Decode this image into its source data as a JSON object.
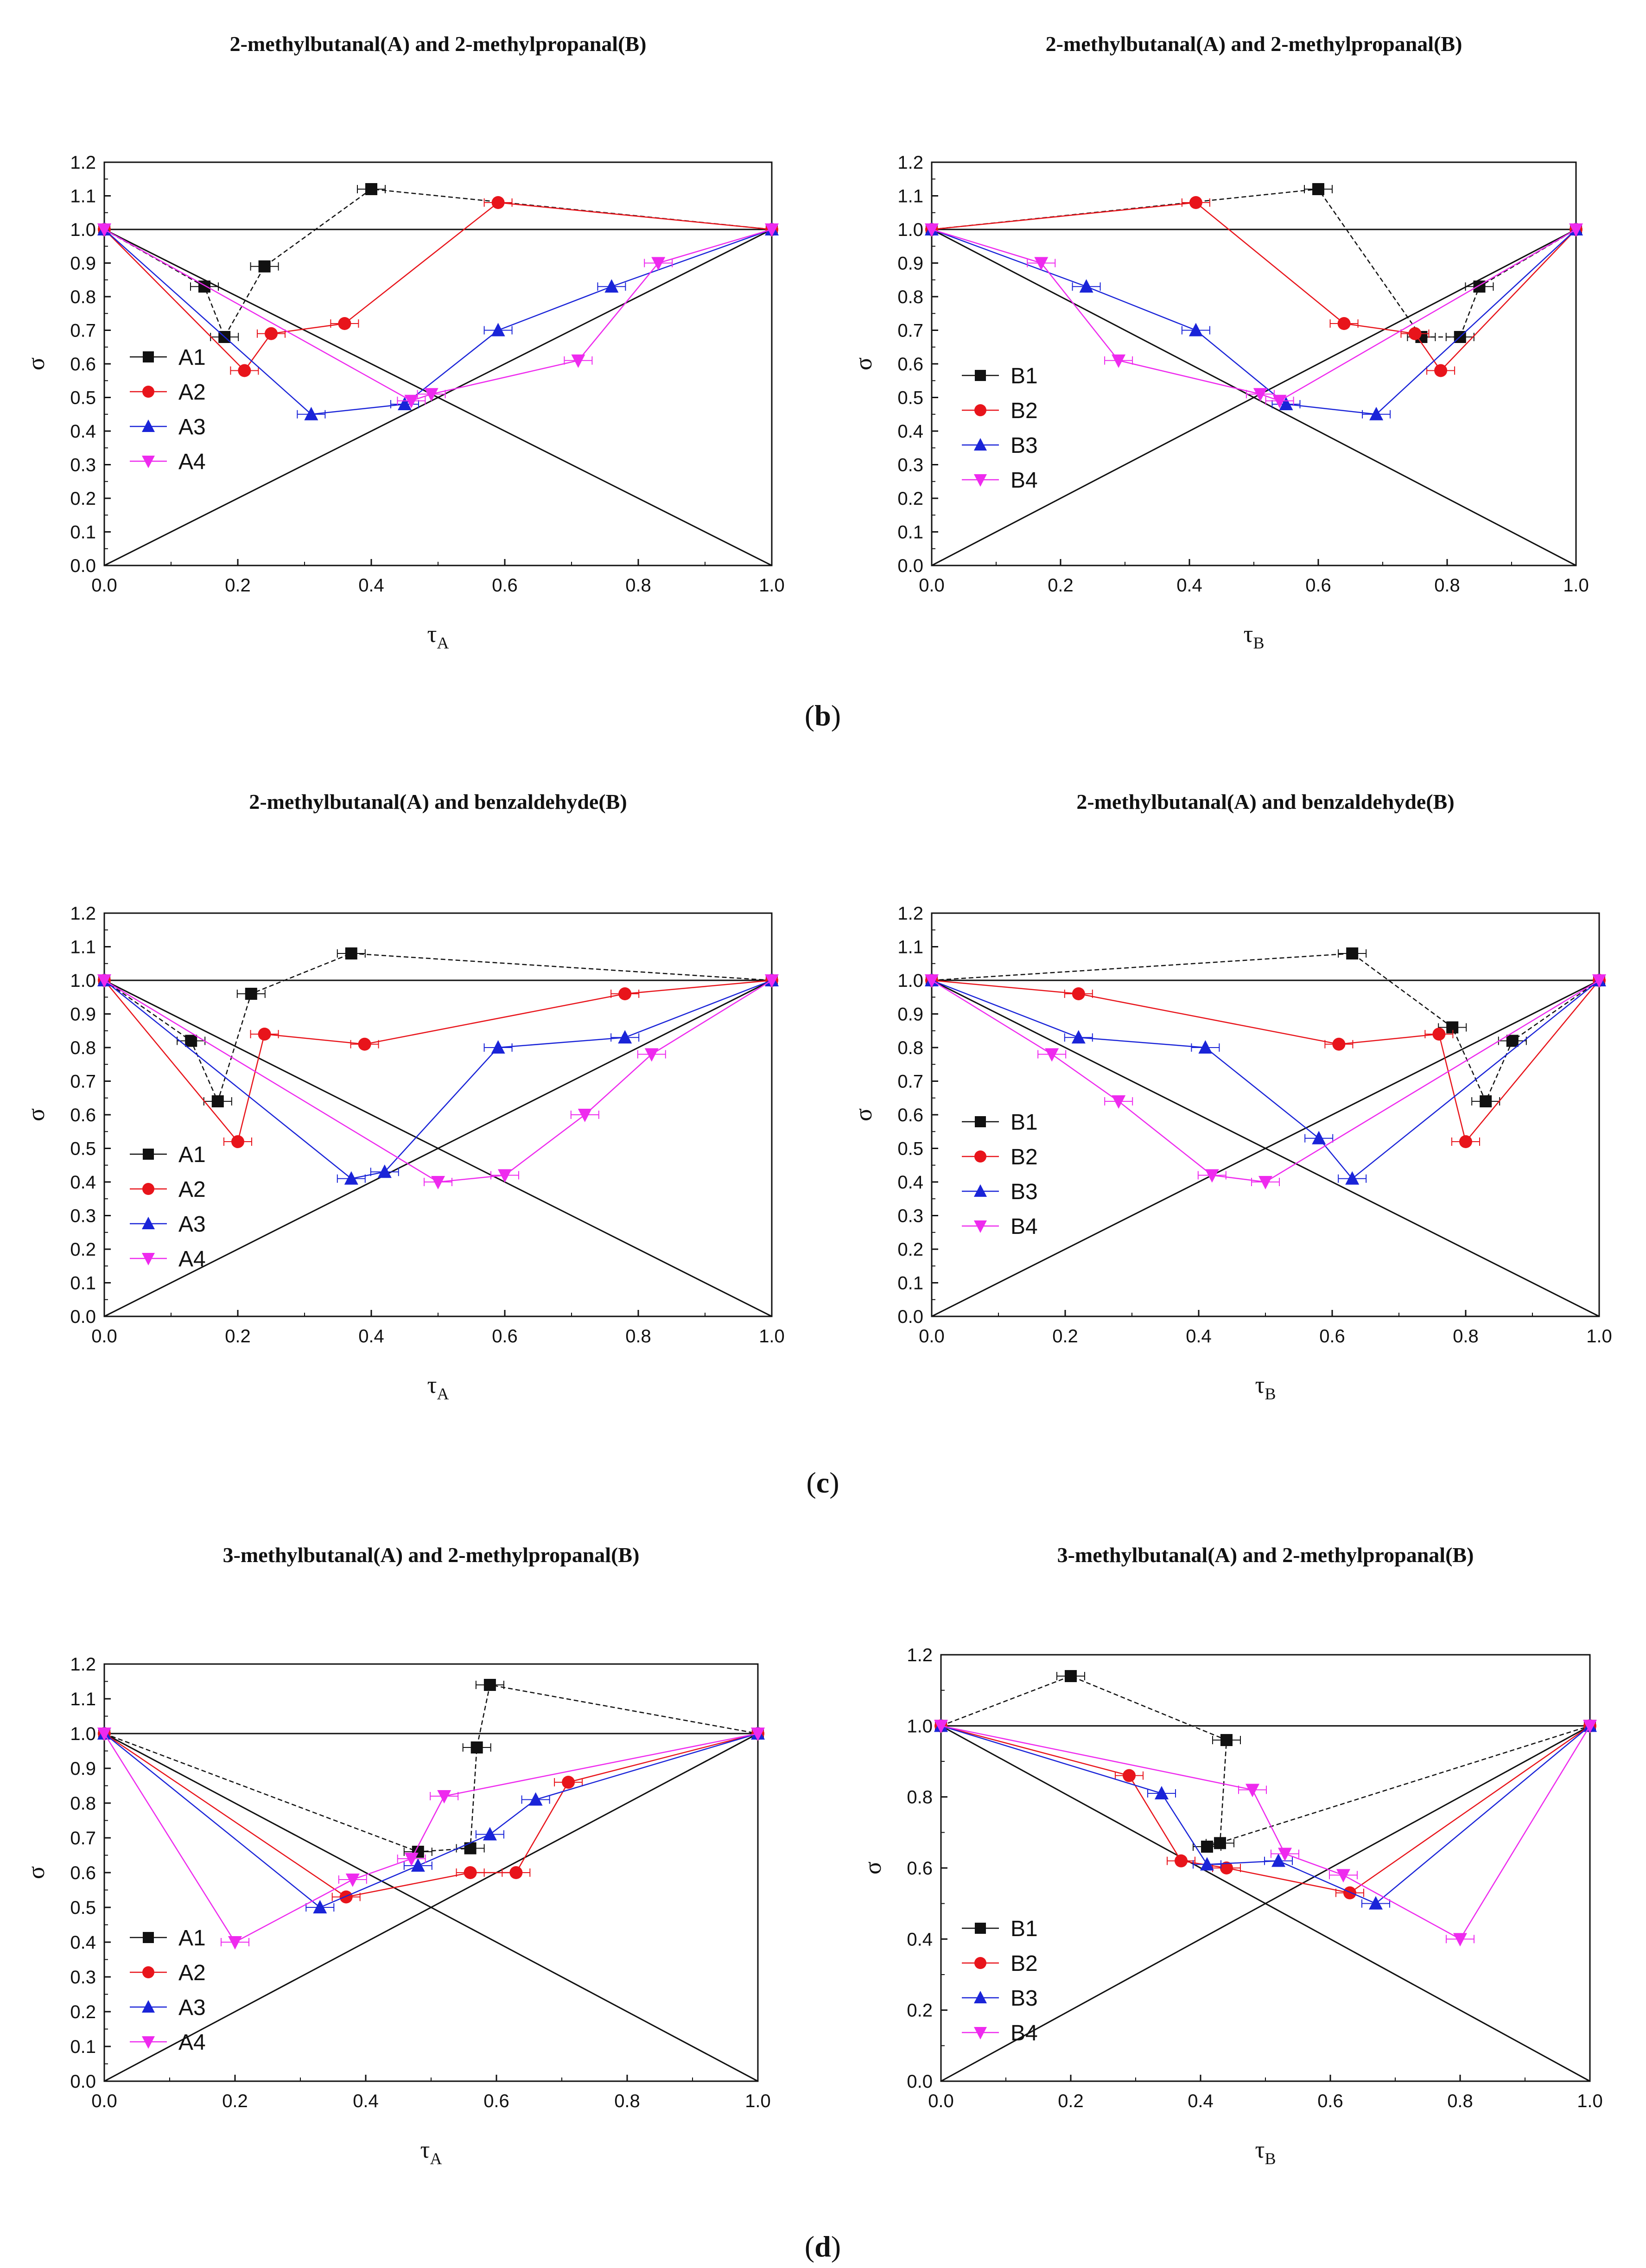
{
  "figure": {
    "captions": [
      {
        "open": "(",
        "letter": "b",
        "close": ")"
      },
      {
        "open": "(",
        "letter": "c",
        "close": ")"
      },
      {
        "open": "(",
        "letter": "d",
        "close": ")"
      }
    ]
  },
  "colors": {
    "s1": "#111111",
    "s2": "#e8141b",
    "s3": "#1a24d8",
    "s4": "#ee2aee"
  },
  "chart_data": [
    {
      "type": "line",
      "title": "2-methylbutanal(A) and 2-methylpropanal(B)",
      "xlabel": "τ",
      "xsub": "A",
      "ylabel": "σ",
      "xlim": [
        0,
        1
      ],
      "ylim": [
        0,
        1.2
      ],
      "xticks": [
        "0.0",
        "0.2",
        "0.4",
        "0.6",
        "0.8",
        "1.0"
      ],
      "yticks": [
        "0.0",
        "0.1",
        "0.2",
        "0.3",
        "0.4",
        "0.5",
        "0.6",
        "0.7",
        "0.8",
        "0.9",
        "1.0",
        "1.1",
        "1.2"
      ],
      "series": [
        {
          "name": "A1",
          "marker": "square",
          "x": [
            0,
            0.15,
            0.18,
            0.24,
            0.4,
            1.0
          ],
          "y": [
            1.0,
            0.83,
            0.68,
            0.89,
            1.12,
            1.0
          ]
        },
        {
          "name": "A2",
          "marker": "circle",
          "x": [
            0,
            0.21,
            0.25,
            0.36,
            0.59,
            1.0
          ],
          "y": [
            1.0,
            0.58,
            0.69,
            0.72,
            1.08,
            1.0
          ]
        },
        {
          "name": "A3",
          "marker": "triangle-up",
          "x": [
            0,
            0.31,
            0.45,
            0.59,
            0.76,
            1.0
          ],
          "y": [
            1.0,
            0.45,
            0.48,
            0.7,
            0.83,
            1.0
          ]
        },
        {
          "name": "A4",
          "marker": "triangle-down",
          "x": [
            0,
            0.46,
            0.49,
            0.71,
            0.83,
            1.0
          ],
          "y": [
            1.0,
            0.49,
            0.51,
            0.61,
            0.9,
            1.0
          ]
        }
      ]
    },
    {
      "type": "line",
      "title": "2-methylbutanal(A) and 2-methylpropanal(B)",
      "xlabel": "τ",
      "xsub": "B",
      "ylabel": "σ",
      "xlim": [
        0,
        1
      ],
      "ylim": [
        0,
        1.2
      ],
      "xticks": [
        "0.0",
        "0.2",
        "0.4",
        "0.6",
        "0.8",
        "1.0"
      ],
      "yticks": [
        "0.0",
        "0.1",
        "0.2",
        "0.3",
        "0.4",
        "0.5",
        "0.6",
        "0.7",
        "0.8",
        "0.9",
        "1.0",
        "1.1",
        "1.2"
      ],
      "series": [
        {
          "name": "B1",
          "marker": "square",
          "x": [
            0,
            0.6,
            0.76,
            0.82,
            0.85,
            1.0
          ],
          "y": [
            1.0,
            1.12,
            0.68,
            0.68,
            0.83,
            1.0
          ]
        },
        {
          "name": "B2",
          "marker": "circle",
          "x": [
            0,
            0.41,
            0.64,
            0.75,
            0.79,
            1.0
          ],
          "y": [
            1.0,
            1.08,
            0.72,
            0.69,
            0.58,
            1.0
          ]
        },
        {
          "name": "B3",
          "marker": "triangle-up",
          "x": [
            0,
            0.24,
            0.41,
            0.55,
            0.69,
            1.0
          ],
          "y": [
            1.0,
            0.83,
            0.7,
            0.48,
            0.45,
            1.0
          ]
        },
        {
          "name": "B4",
          "marker": "triangle-down",
          "x": [
            0,
            0.17,
            0.29,
            0.51,
            0.54,
            1.0
          ],
          "y": [
            1.0,
            0.9,
            0.61,
            0.51,
            0.49,
            1.0
          ]
        }
      ]
    },
    {
      "type": "line",
      "title": "2-methylbutanal(A) and benzaldehyde(B)",
      "xlabel": "τ",
      "xsub": "A",
      "ylabel": "σ",
      "xlim": [
        0,
        1
      ],
      "ylim": [
        0,
        1.2
      ],
      "xticks": [
        "0.0",
        "0.2",
        "0.4",
        "0.6",
        "0.8",
        "1.0"
      ],
      "yticks": [
        "0.0",
        "0.1",
        "0.2",
        "0.3",
        "0.4",
        "0.5",
        "0.6",
        "0.7",
        "0.8",
        "0.9",
        "1.0",
        "1.1",
        "1.2"
      ],
      "series": [
        {
          "name": "A1",
          "marker": "square",
          "x": [
            0,
            0.13,
            0.17,
            0.22,
            0.37,
            1.0
          ],
          "y": [
            1.0,
            0.82,
            0.64,
            0.96,
            1.08,
            1.0
          ]
        },
        {
          "name": "A2",
          "marker": "circle",
          "x": [
            0,
            0.2,
            0.24,
            0.39,
            0.78,
            1.0
          ],
          "y": [
            1.0,
            0.52,
            0.84,
            0.81,
            0.96,
            1.0
          ]
        },
        {
          "name": "A3",
          "marker": "triangle-up",
          "x": [
            0,
            0.37,
            0.42,
            0.59,
            0.78,
            1.0
          ],
          "y": [
            1.0,
            0.41,
            0.43,
            0.8,
            0.83,
            1.0
          ]
        },
        {
          "name": "A4",
          "marker": "triangle-down",
          "x": [
            0,
            0.5,
            0.6,
            0.72,
            0.82,
            1.0
          ],
          "y": [
            1.0,
            0.4,
            0.42,
            0.6,
            0.78,
            1.0
          ]
        }
      ]
    },
    {
      "type": "line",
      "title": "2-methylbutanal(A) and benzaldehyde(B)",
      "xlabel": "τ",
      "xsub": "B",
      "ylabel": "σ",
      "xlim": [
        0,
        1
      ],
      "ylim": [
        0,
        1.2
      ],
      "xticks": [
        "0.0",
        "0.2",
        "0.4",
        "0.6",
        "0.8",
        "1.0"
      ],
      "yticks": [
        "0.0",
        "0.1",
        "0.2",
        "0.3",
        "0.4",
        "0.5",
        "0.6",
        "0.7",
        "0.8",
        "0.9",
        "1.0",
        "1.1",
        "1.2"
      ],
      "series": [
        {
          "name": "B1",
          "marker": "square",
          "x": [
            0,
            0.63,
            0.78,
            0.83,
            0.87,
            1.0
          ],
          "y": [
            1.0,
            1.08,
            0.86,
            0.64,
            0.82,
            1.0
          ]
        },
        {
          "name": "B2",
          "marker": "circle",
          "x": [
            0,
            0.22,
            0.61,
            0.76,
            0.8,
            1.0
          ],
          "y": [
            1.0,
            0.96,
            0.81,
            0.84,
            0.52,
            1.0
          ]
        },
        {
          "name": "B3",
          "marker": "triangle-up",
          "x": [
            0,
            0.22,
            0.41,
            0.58,
            0.63,
            1.0
          ],
          "y": [
            1.0,
            0.83,
            0.8,
            0.53,
            0.41,
            1.0
          ]
        },
        {
          "name": "B4",
          "marker": "triangle-down",
          "x": [
            0,
            0.18,
            0.28,
            0.42,
            0.5,
            1.0
          ],
          "y": [
            1.0,
            0.78,
            0.64,
            0.42,
            0.4,
            1.0
          ]
        }
      ]
    },
    {
      "type": "line",
      "title": "3-methylbutanal(A) and 2-methylpropanal(B)",
      "xlabel": "τ",
      "xsub": "A",
      "ylabel": "σ",
      "xlim": [
        0,
        1
      ],
      "ylim": [
        0,
        1.2
      ],
      "xticks": [
        "0.0",
        "0.2",
        "0.4",
        "0.6",
        "0.8",
        "1.0"
      ],
      "yticks": [
        "0.0",
        "0.1",
        "0.2",
        "0.3",
        "0.4",
        "0.5",
        "0.6",
        "0.7",
        "0.8",
        "0.9",
        "1.0",
        "1.1",
        "1.2"
      ],
      "series": [
        {
          "name": "A1",
          "marker": "square",
          "x": [
            0,
            0.48,
            0.56,
            0.57,
            0.59,
            1.0
          ],
          "y": [
            1.0,
            0.66,
            0.67,
            0.96,
            1.14,
            1.0
          ]
        },
        {
          "name": "A2",
          "marker": "circle",
          "x": [
            0,
            0.37,
            0.56,
            0.63,
            0.71,
            1.0
          ],
          "y": [
            1.0,
            0.53,
            0.6,
            0.6,
            0.86,
            1.0
          ]
        },
        {
          "name": "A3",
          "marker": "triangle-up",
          "x": [
            0,
            0.33,
            0.48,
            0.59,
            0.66,
            1.0
          ],
          "y": [
            1.0,
            0.5,
            0.62,
            0.71,
            0.81,
            1.0
          ]
        },
        {
          "name": "A4",
          "marker": "triangle-down",
          "x": [
            0,
            0.2,
            0.38,
            0.47,
            0.52,
            1.0
          ],
          "y": [
            1.0,
            0.4,
            0.58,
            0.64,
            0.82,
            1.0
          ]
        }
      ]
    },
    {
      "type": "line",
      "title": "3-methylbutanal(A) and 2-methylpropanal(B)",
      "xlabel": "τ",
      "xsub": "B",
      "ylabel": "σ",
      "xlim": [
        0,
        1
      ],
      "ylim": [
        0,
        1.2
      ],
      "xticks": [
        "0.0",
        "0.2",
        "0.4",
        "0.6",
        "0.8",
        "1.0"
      ],
      "yticks": [
        "0.0",
        "0.2",
        "0.4",
        "0.6",
        "0.8",
        "1.0",
        "1.2"
      ],
      "series": [
        {
          "name": "B1",
          "marker": "square",
          "x": [
            0,
            0.2,
            0.44,
            0.43,
            0.41,
            1.0
          ],
          "y": [
            1.0,
            1.14,
            0.96,
            0.67,
            0.66,
            1.0
          ]
        },
        {
          "name": "B2",
          "marker": "circle",
          "x": [
            0,
            0.29,
            0.37,
            0.44,
            0.63,
            1.0
          ],
          "y": [
            1.0,
            0.86,
            0.62,
            0.6,
            0.53,
            1.0
          ]
        },
        {
          "name": "B3",
          "marker": "triangle-up",
          "x": [
            0,
            0.34,
            0.41,
            0.52,
            0.67,
            1.0
          ],
          "y": [
            1.0,
            0.81,
            0.61,
            0.62,
            0.5,
            1.0
          ]
        },
        {
          "name": "B4",
          "marker": "triangle-down",
          "x": [
            0,
            0.48,
            0.53,
            0.62,
            0.8,
            1.0
          ],
          "y": [
            1.0,
            0.82,
            0.64,
            0.58,
            0.4,
            1.0
          ]
        }
      ]
    }
  ]
}
